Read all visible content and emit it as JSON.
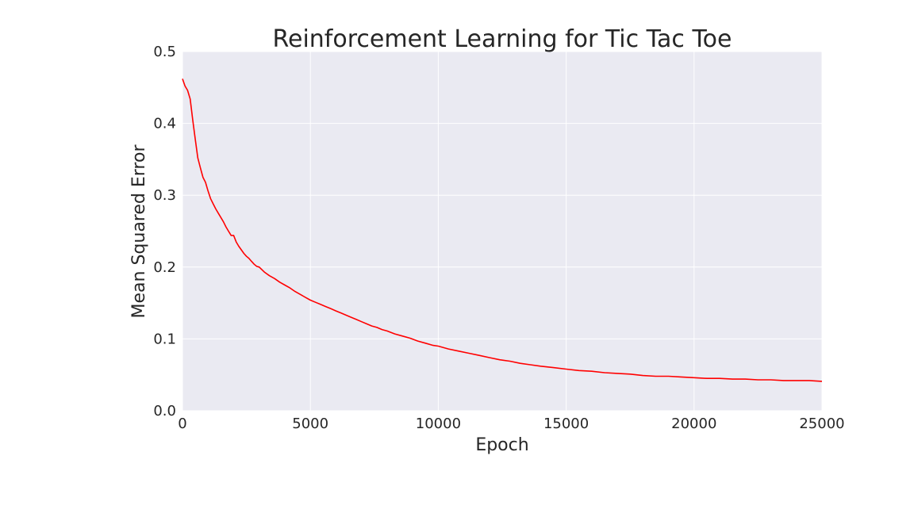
{
  "chart_data": {
    "type": "line",
    "title": "Reinforcement Learning for Tic Tac Toe",
    "xlabel": "Epoch",
    "ylabel": "Mean Squared Error",
    "xlim": [
      0,
      25000
    ],
    "ylim": [
      0.0,
      0.5
    ],
    "xticks": [
      0,
      5000,
      10000,
      15000,
      20000,
      25000
    ],
    "xtick_labels": [
      "0",
      "5000",
      "10000",
      "15000",
      "20000",
      "25000"
    ],
    "yticks": [
      0.0,
      0.1,
      0.2,
      0.3,
      0.4,
      0.5
    ],
    "ytick_labels": [
      "0.0",
      "0.1",
      "0.2",
      "0.3",
      "0.4",
      "0.5"
    ],
    "grid": true,
    "legend": "none",
    "colors": {
      "line": "#ff0000",
      "plot_background": "#eaeaf2",
      "grid": "#ffffff",
      "text": "#262626"
    },
    "series": [
      {
        "x": [
          0,
          100,
          200,
          300,
          400,
          500,
          600,
          700,
          800,
          900,
          1000,
          1100,
          1200,
          1300,
          1400,
          1500,
          1600,
          1700,
          1800,
          1900,
          2000,
          2100,
          2200,
          2300,
          2400,
          2500,
          2600,
          2700,
          2800,
          2900,
          3000,
          3200,
          3400,
          3600,
          3800,
          4000,
          4200,
          4400,
          4600,
          4800,
          5000,
          5200,
          5400,
          5600,
          5800,
          6000,
          6200,
          6400,
          6600,
          6800,
          7000,
          7200,
          7400,
          7600,
          7800,
          8000,
          8300,
          8600,
          8900,
          9200,
          9500,
          9800,
          10000,
          10400,
          10800,
          11200,
          11600,
          12000,
          12400,
          12800,
          13200,
          13600,
          14000,
          14500,
          15000,
          15500,
          16000,
          16500,
          17000,
          17500,
          18000,
          18500,
          19000,
          19500,
          20000,
          20500,
          21000,
          21500,
          22000,
          22500,
          23000,
          23500,
          24000,
          24500,
          25000
        ],
        "values": [
          0.462,
          0.452,
          0.446,
          0.434,
          0.405,
          0.378,
          0.352,
          0.338,
          0.325,
          0.318,
          0.306,
          0.295,
          0.288,
          0.281,
          0.275,
          0.269,
          0.263,
          0.256,
          0.25,
          0.244,
          0.244,
          0.235,
          0.229,
          0.224,
          0.219,
          0.215,
          0.212,
          0.208,
          0.204,
          0.201,
          0.2,
          0.193,
          0.188,
          0.184,
          0.179,
          0.175,
          0.171,
          0.166,
          0.162,
          0.158,
          0.154,
          0.151,
          0.148,
          0.145,
          0.142,
          0.139,
          0.136,
          0.133,
          0.13,
          0.127,
          0.124,
          0.121,
          0.118,
          0.116,
          0.113,
          0.111,
          0.107,
          0.104,
          0.101,
          0.097,
          0.094,
          0.091,
          0.09,
          0.086,
          0.083,
          0.08,
          0.077,
          0.074,
          0.071,
          0.069,
          0.066,
          0.064,
          0.062,
          0.06,
          0.058,
          0.056,
          0.055,
          0.053,
          0.052,
          0.051,
          0.049,
          0.048,
          0.048,
          0.047,
          0.046,
          0.045,
          0.045,
          0.044,
          0.044,
          0.043,
          0.043,
          0.042,
          0.042,
          0.042,
          0.041
        ]
      }
    ]
  }
}
